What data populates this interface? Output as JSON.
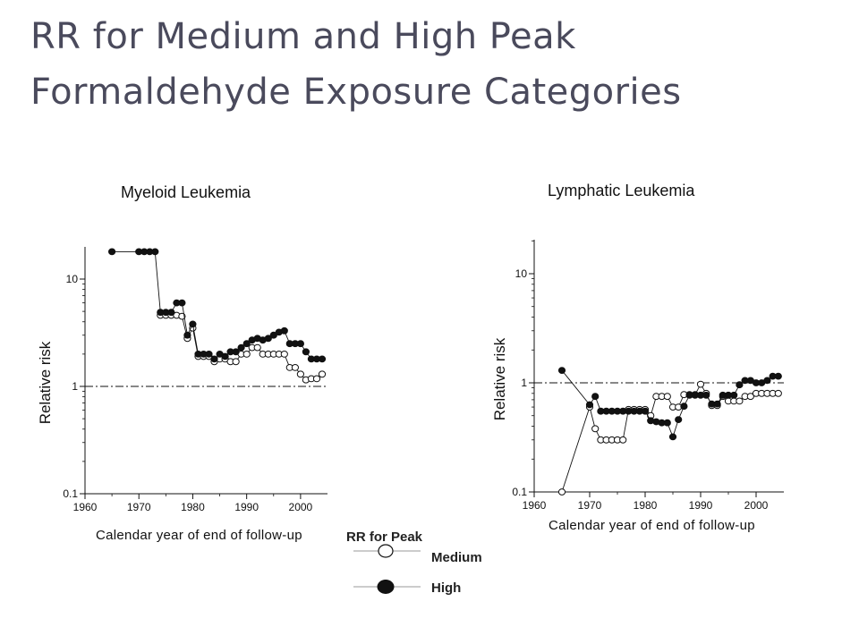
{
  "page": {
    "title_line1": "RR for Medium and High Peak",
    "title_line2": "Formaldehyde Exposure Categories"
  },
  "legend": {
    "title": "RR for Peak",
    "medium_label": "Medium",
    "high_label": "High"
  },
  "colors": {
    "medium_fill": "#ffffff",
    "high_fill": "#111111",
    "reference_line": "#111111"
  },
  "chart_data": [
    {
      "type": "scatter",
      "title": "Myeloid Leukemia",
      "xlabel": "Calendar year of end of follow-up",
      "ylabel": "Relative risk",
      "xlim": [
        1960,
        2005
      ],
      "ylim": [
        0.1,
        20
      ],
      "yscale": "log",
      "x_ticks": [
        1960,
        1970,
        1980,
        1990,
        2000
      ],
      "y_ticks": [
        0.1,
        1,
        10
      ],
      "y_tick_labels": [
        "0.1",
        "1",
        "10"
      ],
      "reference_line": 1,
      "series": [
        {
          "name": "Medium",
          "marker": "open-circle",
          "x": [
            1974,
            1975,
            1976,
            1977,
            1978,
            1979,
            1980,
            1981,
            1982,
            1983,
            1984,
            1985,
            1986,
            1987,
            1988,
            1989,
            1990,
            1991,
            1992,
            1993,
            1994,
            1995,
            1996,
            1997,
            1998,
            1999,
            2000,
            2001,
            2002,
            2003,
            2004
          ],
          "y": [
            4.6,
            4.6,
            4.6,
            4.6,
            4.5,
            2.8,
            3.5,
            1.9,
            1.9,
            1.9,
            1.7,
            1.8,
            1.8,
            1.7,
            1.7,
            2.0,
            2.0,
            2.3,
            2.3,
            2.0,
            2.0,
            2.0,
            2.0,
            2.0,
            1.5,
            1.5,
            1.3,
            1.15,
            1.18,
            1.18,
            1.3
          ]
        },
        {
          "name": "High",
          "marker": "filled-circle",
          "x": [
            1965,
            1970,
            1971,
            1972,
            1973,
            1974,
            1975,
            1976,
            1977,
            1978,
            1979,
            1980,
            1981,
            1982,
            1983,
            1984,
            1985,
            1986,
            1987,
            1988,
            1989,
            1990,
            1991,
            1992,
            1993,
            1994,
            1995,
            1996,
            1997,
            1998,
            1999,
            2000,
            2001,
            2002,
            2003,
            2004
          ],
          "y": [
            18,
            18,
            18,
            18,
            18,
            4.9,
            4.9,
            4.9,
            6.0,
            6.0,
            3.0,
            3.8,
            2.0,
            2.0,
            2.0,
            1.8,
            2.0,
            1.9,
            2.1,
            2.1,
            2.3,
            2.5,
            2.7,
            2.8,
            2.7,
            2.8,
            3.0,
            3.2,
            3.3,
            2.5,
            2.5,
            2.5,
            2.1,
            1.8,
            1.8,
            1.8
          ]
        }
      ]
    },
    {
      "type": "scatter",
      "title": "Lymphatic Leukemia",
      "xlabel": "Calendar year of end of follow-up",
      "ylabel": "Relative risk",
      "xlim": [
        1960,
        2005
      ],
      "ylim": [
        0.1,
        20
      ],
      "yscale": "log",
      "x_ticks": [
        1960,
        1970,
        1980,
        1990,
        2000
      ],
      "y_ticks": [
        0.1,
        1,
        10
      ],
      "y_tick_labels": [
        "0.1",
        "1",
        "10"
      ],
      "reference_line": 1,
      "series": [
        {
          "name": "Medium",
          "marker": "open-circle",
          "x": [
            1965,
            1970,
            1971,
            1972,
            1973,
            1974,
            1975,
            1976,
            1977,
            1978,
            1979,
            1980,
            1981,
            1982,
            1983,
            1984,
            1985,
            1986,
            1987,
            1988,
            1989,
            1990,
            1991,
            1992,
            1993,
            1994,
            1995,
            1996,
            1997,
            1998,
            1999,
            2000,
            2001,
            2002,
            2003,
            2004
          ],
          "y": [
            0.1,
            0.6,
            0.38,
            0.3,
            0.3,
            0.3,
            0.3,
            0.3,
            0.57,
            0.57,
            0.57,
            0.57,
            0.5,
            0.75,
            0.75,
            0.75,
            0.6,
            0.6,
            0.78,
            0.78,
            0.78,
            0.97,
            0.8,
            0.62,
            0.62,
            0.75,
            0.68,
            0.68,
            0.68,
            0.75,
            0.75,
            0.8,
            0.8,
            0.8,
            0.8,
            0.8
          ]
        },
        {
          "name": "High",
          "marker": "filled-circle",
          "x": [
            1965,
            1970,
            1971,
            1972,
            1973,
            1974,
            1975,
            1976,
            1977,
            1978,
            1979,
            1980,
            1981,
            1982,
            1983,
            1984,
            1985,
            1986,
            1987,
            1988,
            1989,
            1990,
            1991,
            1992,
            1993,
            1994,
            1995,
            1996,
            1997,
            1998,
            1999,
            2000,
            2001,
            2002,
            2003,
            2004
          ],
          "y": [
            1.3,
            0.63,
            0.75,
            0.55,
            0.55,
            0.55,
            0.55,
            0.55,
            0.55,
            0.55,
            0.55,
            0.55,
            0.45,
            0.44,
            0.43,
            0.43,
            0.32,
            0.46,
            0.61,
            0.77,
            0.77,
            0.77,
            0.77,
            0.64,
            0.64,
            0.77,
            0.77,
            0.77,
            0.96,
            1.05,
            1.05,
            1.0,
            1.0,
            1.05,
            1.15,
            1.15
          ]
        }
      ]
    }
  ]
}
